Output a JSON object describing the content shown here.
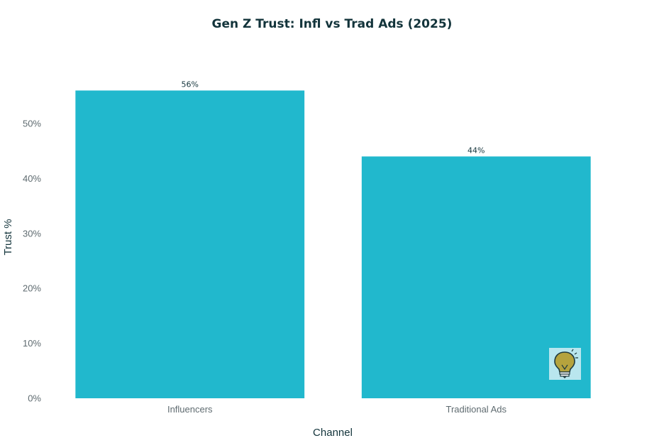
{
  "chart_data": {
    "type": "bar",
    "title": "Gen Z Trust: Infl vs Trad Ads (2025)",
    "xlabel": "Channel",
    "ylabel": "Trust %",
    "categories": [
      "Influencers",
      "Traditional Ads"
    ],
    "values": [
      56,
      44
    ],
    "data_labels": [
      "56%",
      "44%"
    ],
    "ylim": [
      0,
      58
    ],
    "yticks": [
      0,
      10,
      20,
      30,
      40,
      50
    ],
    "ytick_labels": [
      "0%",
      "10%",
      "20%",
      "30%",
      "40%",
      "50%"
    ],
    "grid": false,
    "legend": "none",
    "bar_color": "#21b8cd",
    "icon": "lightbulb-icon"
  }
}
